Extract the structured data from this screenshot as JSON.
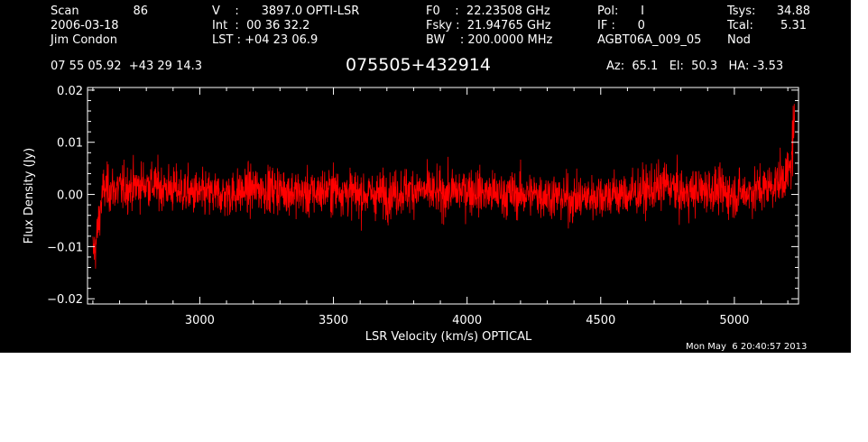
{
  "header": {
    "col1": {
      "scan_label": "Scan",
      "scan_value": "86",
      "date": "2006-03-18",
      "observer": "Jim Condon"
    },
    "col2": {
      "v_line": "V    :      3897.0 OPTI-LSR",
      "int_line": "Int  :  00 36 32.2",
      "lst_line": "LST : +04 23 06.9"
    },
    "col3": {
      "f0_line": "F0    :  22.23508 GHz",
      "fsky_line": "Fsky :  21.94765 GHz",
      "bw_line": "BW    : 200.0000 MHz"
    },
    "col4": {
      "pol_line": "Pol:      I",
      "if_line": "IF :      0",
      "project": "AGBT06A_009_05"
    },
    "col5": {
      "tsys_label": "Tsys:",
      "tsys_value": "34.88",
      "tcal_label": "Tcal:",
      "tcal_value": "5.31",
      "mode": "Nod"
    },
    "coords": "07 55 05.92  +43 29 14.3",
    "source": "075505+432914",
    "azel": "Az:  65.1   El:  50.3   HA: -3.53",
    "timestamp": "Mon May  6 20:40:57 2013"
  },
  "chart_data": {
    "type": "line",
    "title": "075505+432914",
    "xlabel": "LSR Velocity (km/s) OPTICAL",
    "ylabel": "Flux Density (Jy)",
    "xlim": [
      2580,
      5240
    ],
    "ylim": [
      -0.021,
      0.0205
    ],
    "x_ticks": [
      3000,
      3500,
      4000,
      4500,
      5000
    ],
    "x_tick_labels": [
      "3000",
      "3500",
      "4000",
      "4500",
      "5000"
    ],
    "y_ticks": [
      -0.02,
      -0.01,
      0.0,
      0.01,
      0.02
    ],
    "y_tick_labels": [
      "−0.02",
      "−0.01",
      "0.00",
      "0.01",
      "0.02"
    ],
    "grid": false,
    "series_color": "#ff0000",
    "series": [
      {
        "x": [
          2600,
          2610,
          2620,
          2630,
          2640,
          2650,
          2700,
          2800,
          2900,
          3000,
          3100,
          3200,
          3300,
          3400,
          3500,
          3600,
          3700,
          3800,
          3900,
          4000,
          4100,
          4200,
          4300,
          4400,
          4500,
          4600,
          4700,
          4750,
          4800,
          4900,
          5000,
          5100,
          5150,
          5180,
          5200,
          5210,
          5220,
          5225
        ],
        "y": [
          -0.011,
          -0.01,
          -0.006,
          -0.002,
          0.001,
          0.001,
          0.001,
          0.002,
          0.001,
          0.0,
          0.0,
          0.001,
          0.001,
          0.0,
          0.001,
          0.0,
          0.0,
          0.001,
          0.0,
          0.001,
          0.0,
          0.0,
          0.0,
          -0.001,
          0.0,
          0.0,
          0.001,
          0.002,
          0.0,
          0.001,
          0.0,
          0.001,
          0.002,
          0.003,
          0.004,
          0.005,
          0.007,
          0.009
        ],
        "noise_rms": 0.0022
      }
    ]
  }
}
